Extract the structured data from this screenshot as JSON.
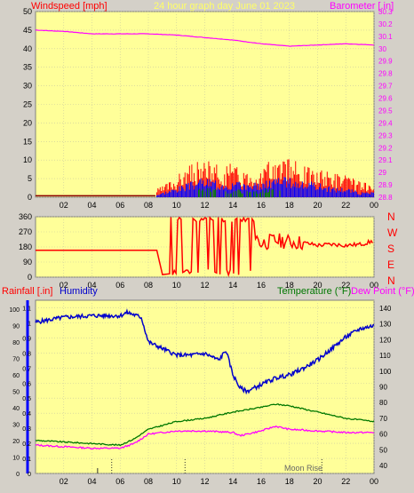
{
  "header": {
    "windspeed_label": "Windspeed [mph]",
    "title": "24 hour graph day   June 01 2023",
    "barometer_label": "Barometer [.in]"
  },
  "lower_header": {
    "rainfall_label": "Rainfall [.in]",
    "humidity_label": "Humidity",
    "temperature_label": "Temperature (°F)",
    "dewpoint_label": "Dew Point (°F)"
  },
  "moon_label": "Moon Rise",
  "colors": {
    "panel_bg": "#ffff99",
    "outer_bg": "#d4d0c8",
    "wind_max": "#ff0000",
    "wind_avg": "#0000ff",
    "wind_low": "#008000",
    "barometer": "#ff00ff",
    "direction": "#ff0000",
    "humidity": "#0000cc",
    "temperature": "#007700",
    "dewpoint": "#ff00ff",
    "rainfall": "#0000ff"
  },
  "chart_data": [
    {
      "type": "line",
      "panel": "wind_barometer",
      "x_ticks": [
        "02",
        "04",
        "06",
        "08",
        "10",
        "12",
        "14",
        "16",
        "18",
        "20",
        "22",
        "00"
      ],
      "y_left_ticks": [
        "0",
        "5",
        "10",
        "15",
        "20",
        "25",
        "30",
        "35",
        "40",
        "45",
        "50"
      ],
      "y_left_range": [
        0,
        50
      ],
      "y_right_ticks": [
        "28.8",
        "28.9",
        "29",
        "29.1",
        "29.2",
        "29.3",
        "29.4",
        "29.5",
        "29.6",
        "29.7",
        "29.8",
        "29.9",
        "30",
        "30.1",
        "30.2",
        "30.3"
      ],
      "y_right_range": [
        28.8,
        30.3
      ],
      "series": [
        {
          "name": "Barometer",
          "axis": "right",
          "x": [
            0,
            2,
            4,
            6,
            8,
            10,
            12,
            14,
            16,
            18,
            20,
            22,
            24
          ],
          "values": [
            30.15,
            30.14,
            30.12,
            30.12,
            30.12,
            30.11,
            30.09,
            30.07,
            30.04,
            30.02,
            30.03,
            30.04,
            30.03
          ]
        },
        {
          "name": "Windspeed",
          "axis": "left",
          "x": [
            0,
            4,
            8,
            9,
            10,
            11,
            12,
            13,
            14,
            15,
            16,
            17,
            18,
            19,
            20,
            21,
            22,
            23,
            24
          ],
          "values": [
            1,
            1,
            1,
            2,
            4,
            6,
            7,
            6,
            6,
            5,
            6,
            7,
            7,
            6,
            5,
            5,
            4,
            3,
            2
          ]
        },
        {
          "name": "Wind average",
          "axis": "left",
          "x": [
            0,
            4,
            8,
            9,
            10,
            11,
            12,
            13,
            14,
            15,
            16,
            17,
            18,
            19,
            20,
            21,
            22,
            23,
            24
          ],
          "values": [
            0,
            0,
            0,
            1,
            2,
            3,
            4,
            3,
            3,
            3,
            3,
            4,
            4,
            3,
            3,
            2,
            2,
            1,
            1
          ]
        }
      ]
    },
    {
      "type": "line",
      "panel": "wind_direction",
      "x_ticks": [
        "02",
        "04",
        "06",
        "08",
        "10",
        "12",
        "14",
        "16",
        "18",
        "20",
        "22",
        "00"
      ],
      "y_left_ticks": [
        "0",
        "90",
        "180",
        "270",
        "360"
      ],
      "y_range": [
        0,
        360
      ],
      "compass_labels": [
        "N",
        "W",
        "S",
        "E",
        "N"
      ],
      "series": [
        {
          "name": "Wind direction",
          "x": [
            0,
            2,
            4,
            6,
            8,
            8.5,
            9,
            9.5,
            10,
            11,
            12,
            13,
            14,
            15,
            16,
            17,
            18,
            19,
            20,
            21,
            22,
            23,
            24
          ],
          "values": [
            160,
            160,
            160,
            160,
            160,
            160,
            20,
            20,
            300,
            330,
            40,
            330,
            60,
            300,
            200,
            220,
            210,
            205,
            190,
            195,
            190,
            195,
            215
          ]
        }
      ]
    },
    {
      "type": "line",
      "panel": "rain_humidity_temperature",
      "x_ticks": [
        "02",
        "04",
        "06",
        "08",
        "10",
        "12",
        "14",
        "16",
        "18",
        "20",
        "22",
        "00"
      ],
      "y_left_ticks": [
        "0",
        "0.1",
        "0.2",
        "0.3",
        "0.4",
        "0.5",
        "0.6",
        "0.7",
        "0.8",
        "0.9",
        "1",
        "1.1"
      ],
      "y_left_range": [
        0,
        1.15
      ],
      "humidity_ticks": [
        "0",
        "10",
        "20",
        "30",
        "40",
        "50",
        "60",
        "70",
        "80",
        "90",
        "100"
      ],
      "humidity_range": [
        0,
        100
      ],
      "y_right_ticks": [
        "40",
        "50",
        "60",
        "70",
        "80",
        "90",
        "100",
        "110",
        "120",
        "130",
        "140"
      ],
      "y_right_range": [
        35,
        145
      ],
      "series": [
        {
          "name": "Humidity",
          "axis": "humidity",
          "x": [
            0,
            2,
            4,
            6,
            6.5,
            7.5,
            8,
            9,
            10,
            11,
            12,
            13,
            13.5,
            14,
            14.5,
            15,
            16,
            17,
            18,
            19,
            20,
            21,
            22,
            23,
            24
          ],
          "values": [
            92,
            95,
            96,
            96,
            98,
            95,
            80,
            76,
            72,
            72,
            73,
            69,
            75,
            60,
            52,
            50,
            54,
            58,
            60,
            64,
            69,
            76,
            83,
            88,
            90
          ]
        },
        {
          "name": "Temperature",
          "axis": "right",
          "x": [
            0,
            2,
            4,
            6,
            7,
            8,
            10,
            12,
            14,
            16,
            17,
            18,
            20,
            22,
            24
          ],
          "values": [
            56,
            55,
            54,
            53,
            57,
            63,
            68,
            70,
            74,
            77,
            79,
            78,
            74,
            70,
            68
          ]
        },
        {
          "name": "Dew Point",
          "axis": "right",
          "x": [
            0,
            2,
            4,
            6,
            7,
            8,
            10,
            12,
            14,
            14.5,
            16,
            17,
            18,
            20,
            22,
            24
          ],
          "values": [
            53,
            52,
            51,
            51,
            54,
            60,
            62,
            62,
            61,
            59,
            62,
            65,
            63,
            62,
            61,
            61
          ]
        },
        {
          "name": "Rainfall",
          "axis": "left",
          "x": [
            0,
            24
          ],
          "values": [
            0,
            0
          ]
        }
      ]
    }
  ]
}
